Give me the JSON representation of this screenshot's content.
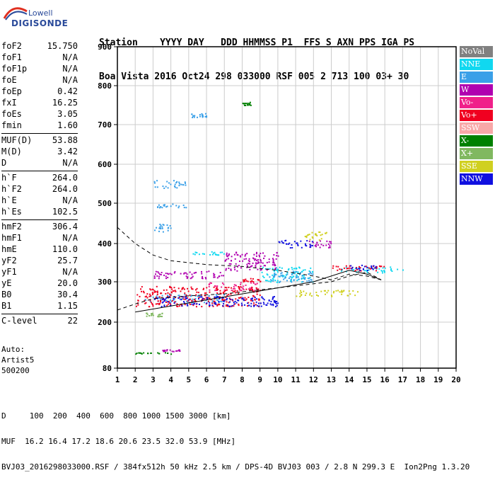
{
  "logo": {
    "top": "Lowell",
    "bottom": "DIGISONDE"
  },
  "header": {
    "line1": "Station    YYYY DAY   DDD HHMMSS P1  FFS S AXN PPS IGA PS",
    "line2": "Boa Vista 2016 Oct24 298 033000 RSF 005 2 713 100 03+ 30"
  },
  "params": [
    [
      {
        "name": "foF2",
        "value": "15.750"
      },
      {
        "name": "foF1",
        "value": "N/A"
      },
      {
        "name": "foF1p",
        "value": "N/A"
      },
      {
        "name": "foE",
        "value": "N/A"
      },
      {
        "name": "foEp",
        "value": "0.42"
      },
      {
        "name": "fxI",
        "value": "16.25"
      },
      {
        "name": "foEs",
        "value": "3.05"
      },
      {
        "name": "fmin",
        "value": "1.60"
      }
    ],
    [
      {
        "name": "MUF(D)",
        "value": "53.88"
      },
      {
        "name": "M(D)",
        "value": "3.42"
      },
      {
        "name": "D",
        "value": "N/A"
      }
    ],
    [
      {
        "name": "h`F",
        "value": "264.0"
      },
      {
        "name": "h`F2",
        "value": "264.0"
      },
      {
        "name": "h`E",
        "value": "N/A"
      },
      {
        "name": "h`Es",
        "value": "102.5"
      }
    ],
    [
      {
        "name": "hmF2",
        "value": "306.4"
      },
      {
        "name": "hmF1",
        "value": "N/A"
      },
      {
        "name": "hmE",
        "value": "110.0"
      },
      {
        "name": "yF2",
        "value": "25.7"
      },
      {
        "name": "yF1",
        "value": "N/A"
      },
      {
        "name": "yE",
        "value": "20.0"
      },
      {
        "name": "B0",
        "value": "30.4"
      },
      {
        "name": "B1",
        "value": "1.15"
      }
    ],
    [
      {
        "name": "C-level",
        "value": "22"
      }
    ]
  ],
  "auto": {
    "line1": "Auto:",
    "line2": "Artist5",
    "line3": "500200"
  },
  "legend": [
    {
      "label": "NoVal",
      "color": "#808080"
    },
    {
      "label": "NNE",
      "color": "#10d8f0"
    },
    {
      "label": "E",
      "color": "#3aa0e8"
    },
    {
      "label": "W",
      "color": "#b000b0"
    },
    {
      "label": "Vo-",
      "color": "#f0208a"
    },
    {
      "label": "Vo+",
      "color": "#f00020"
    },
    {
      "label": "SSW",
      "color": "#f8a8a8"
    },
    {
      "label": "X-",
      "color": "#008000"
    },
    {
      "label": "X+",
      "color": "#80b860"
    },
    {
      "label": "SSE",
      "color": "#d0d020"
    },
    {
      "label": "NNW",
      "color": "#1010e0"
    }
  ],
  "footer": {
    "line1": "D     100  200  400  600  800 1000 1500 3000 [km]",
    "line2": "MUF  16.2 16.4 17.2 18.6 20.6 23.5 32.0 53.9 [MHz]",
    "line3": "BVJ03_2016298033000.RSF / 384fx512h 50 kHz 2.5 km / DPS-4D BVJ03 003 / 2.8 N 299.3 E  Ion2Png 1.3.20"
  },
  "chart_data": {
    "type": "scatter",
    "title": "",
    "xlabel": "",
    "ylabel": "",
    "x_ticks": [
      1,
      2,
      3,
      4,
      5,
      6,
      7,
      8,
      9,
      10,
      11,
      12,
      13,
      14,
      15,
      16,
      17,
      18,
      19,
      20
    ],
    "y_ticks": [
      80,
      200,
      300,
      400,
      500,
      600,
      700,
      800,
      900
    ],
    "xlim": [
      1,
      20
    ],
    "ylim": [
      80,
      900
    ],
    "y_axis_note": "non-linear (logarithmic-like) virtual height scale in km",
    "grid": true,
    "legend_position": "right",
    "series": [
      {
        "name": "NoVal",
        "color": "#808080",
        "clusters": []
      },
      {
        "name": "NNE",
        "color": "#10d8f0",
        "clusters": [
          {
            "x": [
              5,
              7
            ],
            "y": [
              370,
              380
            ]
          },
          {
            "x": [
              13.5,
              17
            ],
            "y": [
              325,
              340
            ]
          },
          {
            "x": [
              9,
              12
            ],
            "y": [
              300,
              340
            ]
          }
        ]
      },
      {
        "name": "E",
        "color": "#3aa0e8",
        "clusters": [
          {
            "x": [
              3,
              4.8
            ],
            "y": [
              540,
              560
            ]
          },
          {
            "x": [
              3.2,
              5
            ],
            "y": [
              490,
              500
            ]
          },
          {
            "x": [
              3,
              4
            ],
            "y": [
              430,
              450
            ]
          },
          {
            "x": [
              5,
              6
            ],
            "y": [
              720,
              730
            ]
          },
          {
            "x": [
              2.5,
              7
            ],
            "y": [
              250,
              270
            ]
          },
          {
            "x": [
              9.5,
              12
            ],
            "y": [
              300,
              330
            ]
          }
        ]
      },
      {
        "name": "W",
        "color": "#b000b0",
        "clusters": [
          {
            "x": [
              3,
              7
            ],
            "y": [
              310,
              330
            ]
          },
          {
            "x": [
              7,
              10
            ],
            "y": [
              330,
              380
            ]
          },
          {
            "x": [
              11.5,
              13
            ],
            "y": [
              390,
              410
            ]
          },
          {
            "x": [
              3.5,
              4.5
            ],
            "y": [
              125,
              130
            ]
          }
        ]
      },
      {
        "name": "Vo-",
        "color": "#f0208a",
        "clusters": [
          {
            "x": [
              6,
              9
            ],
            "y": [
              280,
              300
            ]
          }
        ]
      },
      {
        "name": "Vo+",
        "color": "#f00020",
        "clusters": [
          {
            "x": [
              2,
              9
            ],
            "y": [
              240,
              290
            ]
          },
          {
            "x": [
              13,
              16
            ],
            "y": [
              330,
              345
            ]
          },
          {
            "x": [
              8,
              9
            ],
            "y": [
              300,
              310
            ]
          }
        ]
      },
      {
        "name": "SSW",
        "color": "#f8a8a8",
        "clusters": []
      },
      {
        "name": "X-",
        "color": "#008000",
        "clusters": [
          {
            "x": [
              2,
              4
            ],
            "y": [
              118,
              122
            ]
          },
          {
            "x": [
              8,
              8.5
            ],
            "y": [
              750,
              760
            ]
          }
        ]
      },
      {
        "name": "X+",
        "color": "#80b860",
        "clusters": [
          {
            "x": [
              2.5,
              3.5
            ],
            "y": [
              215,
              225
            ]
          }
        ]
      },
      {
        "name": "SSE",
        "color": "#d0d020",
        "clusters": [
          {
            "x": [
              11.5,
              13
            ],
            "y": [
              410,
              430
            ]
          },
          {
            "x": [
              11,
              14.5
            ],
            "y": [
              265,
              280
            ]
          }
        ]
      },
      {
        "name": "NNW",
        "color": "#1010e0",
        "clusters": [
          {
            "x": [
              10,
              12
            ],
            "y": [
              390,
              410
            ]
          },
          {
            "x": [
              3,
              10
            ],
            "y": [
              240,
              265
            ]
          },
          {
            "x": [
              14,
              15.5
            ],
            "y": [
              330,
              345
            ]
          }
        ]
      }
    ],
    "profile_lines": [
      {
        "style": "dashed",
        "points": [
          [
            1,
            440
          ],
          [
            2,
            400
          ],
          [
            3,
            370
          ],
          [
            4,
            355
          ],
          [
            6,
            345
          ],
          [
            8,
            340
          ],
          [
            10,
            330
          ],
          [
            12,
            315
          ],
          [
            13,
            305
          ],
          [
            14,
            320
          ],
          [
            15,
            315
          ],
          [
            15.8,
            305
          ]
        ]
      },
      {
        "style": "dashed",
        "points": [
          [
            1,
            230
          ],
          [
            2,
            245
          ],
          [
            3,
            258
          ],
          [
            5,
            265
          ],
          [
            7,
            270
          ],
          [
            9,
            280
          ],
          [
            11,
            290
          ],
          [
            13,
            300
          ],
          [
            14,
            315
          ],
          [
            15,
            325
          ],
          [
            15.8,
            305
          ]
        ]
      },
      {
        "style": "solid",
        "points": [
          [
            2,
            225
          ],
          [
            4,
            240
          ],
          [
            6,
            255
          ],
          [
            8,
            270
          ],
          [
            10,
            285
          ],
          [
            12,
            300
          ],
          [
            14,
            330
          ],
          [
            15,
            320
          ],
          [
            15.8,
            305
          ]
        ]
      }
    ]
  }
}
